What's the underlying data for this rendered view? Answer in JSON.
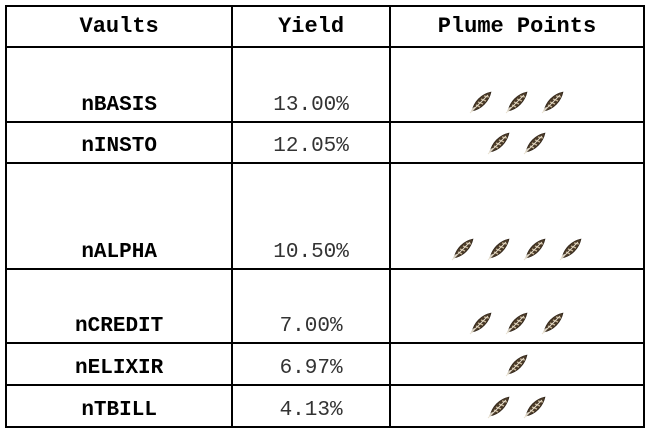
{
  "table": {
    "headers": [
      "Vaults",
      "Yield",
      "Plume Points"
    ],
    "rows": [
      {
        "vault": "nBASIS",
        "yield": "13.00%",
        "plume_points": 3
      },
      {
        "vault": "nINSTO",
        "yield": "12.05%",
        "plume_points": 2
      },
      {
        "vault": "nALPHA",
        "yield": "10.50%",
        "plume_points": 4
      },
      {
        "vault": "nCREDIT",
        "yield": "7.00%",
        "plume_points": 3
      },
      {
        "vault": "nELIXIR",
        "yield": "6.97%",
        "plume_points": 1
      },
      {
        "vault": "nTBILL",
        "yield": "4.13%",
        "plume_points": 2
      }
    ]
  }
}
